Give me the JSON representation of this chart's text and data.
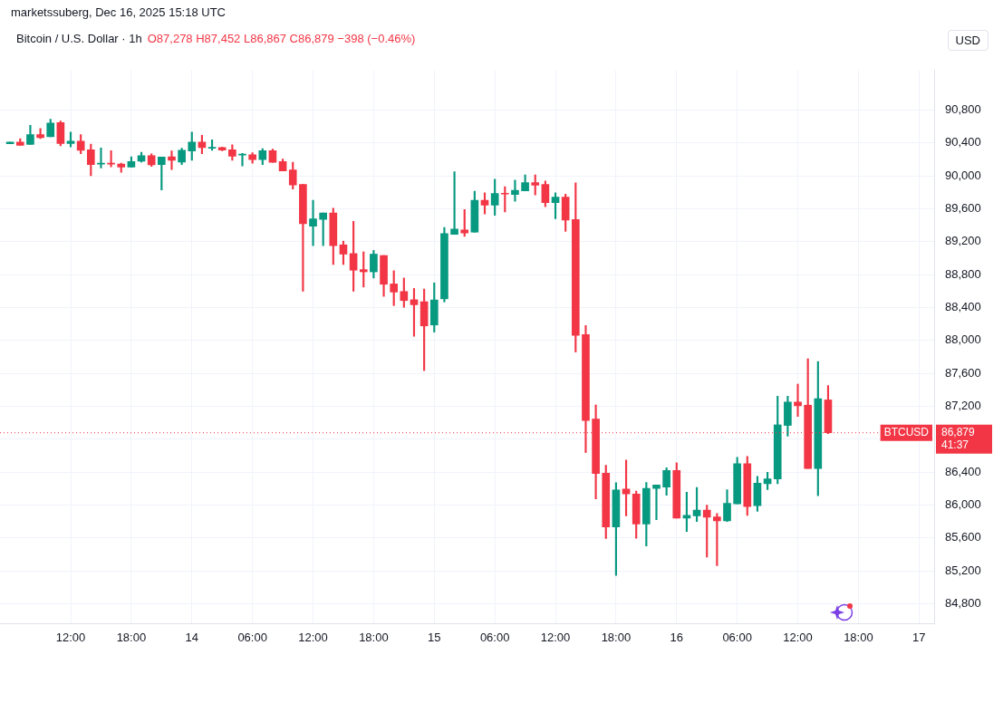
{
  "chart_data": {
    "type": "candlestick",
    "title": "Bitcoin / U.S. Dollar · 1h",
    "subtitle": "O87,278 H87,452 L86,867 C86,879 −398 (−0.46%)",
    "ylabel": "USD",
    "annotations": [
      "marketssuberg, Dec 16, 2025 15:18 UTC",
      "86,879",
      "41:37"
    ],
    "x": [
      "2025-12-13T06:00",
      "2025-12-13T07:00",
      "2025-12-13T08:00",
      "2025-12-13T09:00",
      "2025-12-13T10:00",
      "2025-12-13T11:00",
      "2025-12-13T12:00",
      "2025-12-13T13:00",
      "2025-12-13T14:00",
      "2025-12-13T15:00",
      "2025-12-13T16:00",
      "2025-12-13T17:00",
      "2025-12-13T18:00",
      "2025-12-13T19:00",
      "2025-12-13T20:00",
      "2025-12-13T21:00",
      "2025-12-13T22:00",
      "2025-12-13T23:00",
      "2025-12-14T00:00",
      "2025-12-14T01:00",
      "2025-12-14T02:00",
      "2025-12-14T03:00",
      "2025-12-14T04:00",
      "2025-12-14T05:00",
      "2025-12-14T06:00",
      "2025-12-14T07:00",
      "2025-12-14T08:00",
      "2025-12-14T09:00",
      "2025-12-14T10:00",
      "2025-12-14T11:00",
      "2025-12-14T12:00",
      "2025-12-14T13:00",
      "2025-12-14T14:00",
      "2025-12-14T15:00",
      "2025-12-14T16:00",
      "2025-12-14T17:00",
      "2025-12-14T18:00",
      "2025-12-14T19:00",
      "2025-12-14T20:00",
      "2025-12-14T21:00",
      "2025-12-14T22:00",
      "2025-12-14T23:00",
      "2025-12-15T00:00",
      "2025-12-15T01:00",
      "2025-12-15T02:00",
      "2025-12-15T03:00",
      "2025-12-15T04:00",
      "2025-12-15T05:00",
      "2025-12-15T06:00",
      "2025-12-15T07:00",
      "2025-12-15T08:00",
      "2025-12-15T09:00",
      "2025-12-15T10:00",
      "2025-12-15T11:00",
      "2025-12-15T12:00",
      "2025-12-15T13:00",
      "2025-12-15T14:00",
      "2025-12-15T15:00",
      "2025-12-15T16:00",
      "2025-12-15T17:00",
      "2025-12-15T18:00",
      "2025-12-15T19:00",
      "2025-12-15T20:00",
      "2025-12-15T21:00",
      "2025-12-15T22:00",
      "2025-12-15T23:00",
      "2025-12-16T00:00",
      "2025-12-16T01:00",
      "2025-12-16T02:00",
      "2025-12-16T03:00",
      "2025-12-16T04:00",
      "2025-12-16T05:00",
      "2025-12-16T06:00",
      "2025-12-16T07:00",
      "2025-12-16T08:00",
      "2025-12-16T09:00",
      "2025-12-16T10:00",
      "2025-12-16T11:00",
      "2025-12-16T12:00",
      "2025-12-16T13:00",
      "2025-12-16T14:00",
      "2025-12-16T15:00"
    ],
    "ohlc": [
      [
        90390,
        90410,
        90390,
        90410
      ],
      [
        90410,
        90451,
        90372,
        90372
      ],
      [
        90383,
        90615,
        90383,
        90502
      ],
      [
        90502,
        90574,
        90454,
        90465
      ],
      [
        90475,
        90687,
        90475,
        90642
      ],
      [
        90646,
        90666,
        90366,
        90393
      ],
      [
        90393,
        90530,
        90352,
        90420
      ],
      [
        90420,
        90502,
        90270,
        90311
      ],
      [
        90318,
        90386,
        90003,
        90136
      ],
      [
        90143,
        90338,
        90095,
        90154
      ],
      [
        90154,
        90307,
        90109,
        90143
      ],
      [
        90143,
        90154,
        90044,
        90106
      ],
      [
        90106,
        90232,
        90106,
        90174
      ],
      [
        90177,
        90287,
        90167,
        90246
      ],
      [
        90246,
        90266,
        90116,
        90133
      ],
      [
        90136,
        90229,
        89829,
        90229
      ],
      [
        90232,
        90304,
        90075,
        90188
      ],
      [
        90167,
        90335,
        90136,
        90311
      ],
      [
        90301,
        90530,
        90188,
        90410
      ],
      [
        90410,
        90492,
        90270,
        90342
      ],
      [
        90335,
        90437,
        90311,
        90345
      ],
      [
        90345,
        90350,
        90304,
        90314
      ],
      [
        90318,
        90376,
        90188,
        90239
      ],
      [
        90253,
        90273,
        90119,
        90263
      ],
      [
        90256,
        90280,
        90154,
        90198
      ],
      [
        90198,
        90331,
        90136,
        90307
      ],
      [
        90307,
        90325,
        90164,
        90164
      ],
      [
        90174,
        90205,
        90061,
        90061
      ],
      [
        90071,
        90164,
        89839,
        89890
      ],
      [
        89897,
        89897,
        88598,
        89419
      ],
      [
        89388,
        89702,
        89152,
        89477
      ],
      [
        89470,
        89548,
        89152,
        89548
      ],
      [
        89548,
        89607,
        88923,
        89152
      ],
      [
        89162,
        89207,
        88923,
        89049
      ],
      [
        89056,
        89446,
        88598,
        88854
      ],
      [
        88861,
        89077,
        88649,
        88834
      ],
      [
        88834,
        89094,
        88759,
        89049
      ],
      [
        89032,
        89032,
        88536,
        88683
      ],
      [
        88687,
        88847,
        88424,
        88588
      ],
      [
        88595,
        88759,
        88403,
        88485
      ],
      [
        88495,
        88632,
        88051,
        88434
      ],
      [
        88471,
        88625,
        87634,
        88177
      ],
      [
        88188,
        88700,
        88102,
        88492
      ],
      [
        88506,
        89374,
        88468,
        89299
      ],
      [
        89289,
        90051,
        89289,
        89354
      ],
      [
        89343,
        89590,
        89265,
        89306
      ],
      [
        89316,
        89812,
        89316,
        89702
      ],
      [
        89702,
        89795,
        89538,
        89644
      ],
      [
        89644,
        89959,
        89521,
        89785
      ],
      [
        89788,
        89867,
        89562,
        89778
      ],
      [
        89774,
        89949,
        89692,
        89825
      ],
      [
        89819,
        90010,
        89819,
        89918
      ],
      [
        89918,
        90010,
        89767,
        89887
      ],
      [
        89897,
        89938,
        89624,
        89675
      ],
      [
        89675,
        89795,
        89480,
        89743
      ],
      [
        89743,
        89778,
        89326,
        89463
      ],
      [
        89470,
        89914,
        87860,
        88061
      ],
      [
        88071,
        88181,
        86639,
        87029
      ],
      [
        87046,
        87217,
        86075,
        86383
      ],
      [
        86389,
        86485,
        85593,
        85736
      ],
      [
        85736,
        86273,
        85145,
        86184
      ],
      [
        86195,
        86547,
        85870,
        86136
      ],
      [
        86134,
        86171,
        85597,
        85771
      ],
      [
        85771,
        86274,
        85504,
        86202
      ],
      [
        86202,
        86246,
        85822,
        86246
      ],
      [
        86219,
        86455,
        86120,
        86421
      ],
      [
        86421,
        86513,
        85843,
        85843
      ],
      [
        85843,
        86157,
        85679,
        85877
      ],
      [
        85870,
        86215,
        85802,
        85939
      ],
      [
        85939,
        86000,
        85368,
        85853
      ],
      [
        85857,
        85898,
        85265,
        85809
      ],
      [
        85809,
        86188,
        85802,
        86021
      ],
      [
        86014,
        86581,
        86014,
        86503
      ],
      [
        86503,
        86592,
        85874,
        85983
      ],
      [
        85993,
        86349,
        85925,
        86267
      ],
      [
        86260,
        86400,
        86188,
        86318
      ],
      [
        86318,
        87323,
        86260,
        86975
      ],
      [
        86968,
        87323,
        86838,
        87252
      ],
      [
        87252,
        87470,
        87077,
        87207
      ],
      [
        87214,
        87778,
        86445,
        86445
      ],
      [
        86445,
        87744,
        86113,
        87293
      ],
      [
        87278,
        87452,
        86867,
        86879
      ]
    ],
    "colors": [
      "#089981",
      "#f23645",
      "#089981",
      "#f23645",
      "#089981",
      "#f23645",
      "#089981",
      "#f23645",
      "#f23645",
      "#089981",
      "#f23645",
      "#f23645",
      "#089981",
      "#089981",
      "#f23645",
      "#089981",
      "#f23645",
      "#089981",
      "#089981",
      "#f23645",
      "#089981",
      "#f23645",
      "#f23645",
      "#089981",
      "#f23645",
      "#089981",
      "#f23645",
      "#f23645",
      "#f23645",
      "#f23645",
      "#089981",
      "#089981",
      "#f23645",
      "#f23645",
      "#f23645",
      "#f23645",
      "#089981",
      "#f23645",
      "#f23645",
      "#f23645",
      "#f23645",
      "#f23645",
      "#089981",
      "#089981",
      "#089981",
      "#f23645",
      "#089981",
      "#f23645",
      "#089981",
      "#f23645",
      "#089981",
      "#089981",
      "#f23645",
      "#f23645",
      "#089981",
      "#f23645",
      "#f23645",
      "#f23645",
      "#f23645",
      "#f23645",
      "#089981",
      "#f23645",
      "#f23645",
      "#089981",
      "#089981",
      "#089981",
      "#f23645",
      "#089981",
      "#089981",
      "#f23645",
      "#f23645",
      "#089981",
      "#089981",
      "#f23645",
      "#089981",
      "#089981",
      "#089981",
      "#089981",
      "#f23645",
      "#f23645",
      "#089981",
      "#f23645"
    ],
    "xlim": [
      "2025-12-13T05:00",
      "2025-12-17T01:30"
    ],
    "xticks": [
      {
        "value": "2025-12-13T12:00",
        "label": "12:00"
      },
      {
        "value": "2025-12-13T18:00",
        "label": "18:00"
      },
      {
        "value": "2025-12-14T00:00",
        "label": "14"
      },
      {
        "value": "2025-12-14T06:00",
        "label": "06:00"
      },
      {
        "value": "2025-12-14T12:00",
        "label": "12:00"
      },
      {
        "value": "2025-12-14T18:00",
        "label": "18:00"
      },
      {
        "value": "2025-12-15T00:00",
        "label": "15"
      },
      {
        "value": "2025-12-15T06:00",
        "label": "06:00"
      },
      {
        "value": "2025-12-15T12:00",
        "label": "12:00"
      },
      {
        "value": "2025-12-15T18:00",
        "label": "18:00"
      },
      {
        "value": "2025-12-16T00:00",
        "label": "16"
      },
      {
        "value": "2025-12-16T06:00",
        "label": "06:00"
      },
      {
        "value": "2025-12-16T12:00",
        "label": "12:00"
      },
      {
        "value": "2025-12-16T18:00",
        "label": "18:00"
      },
      {
        "value": "2025-12-17T00:00",
        "label": "17"
      }
    ],
    "ylim": [
      84560,
      91280
    ],
    "yticks": [
      {
        "value": 84800,
        "label": "84,800"
      },
      {
        "value": 85200,
        "label": "85,200"
      },
      {
        "value": 85600,
        "label": "85,600"
      },
      {
        "value": 86000,
        "label": "86,000"
      },
      {
        "value": 86400,
        "label": "86,400"
      },
      {
        "value": 86800,
        "label": null
      },
      {
        "value": 87200,
        "label": "87,200"
      },
      {
        "value": 87600,
        "label": "87,600"
      },
      {
        "value": 88000,
        "label": "88,000"
      },
      {
        "value": 88400,
        "label": "88,400"
      },
      {
        "value": 88800,
        "label": "88,800"
      },
      {
        "value": 89200,
        "label": "89,200"
      },
      {
        "value": 89600,
        "label": "89,600"
      },
      {
        "value": 90000,
        "label": "90,000"
      },
      {
        "value": 90400,
        "label": "90,400"
      },
      {
        "value": 90800,
        "label": "90,800"
      }
    ],
    "ref_lines": [
      {
        "axis": "y",
        "value": 86879,
        "label": "BTCUSD",
        "color": "#f23645",
        "line_style": "dotted"
      }
    ],
    "grid": true,
    "legend": false
  }
}
